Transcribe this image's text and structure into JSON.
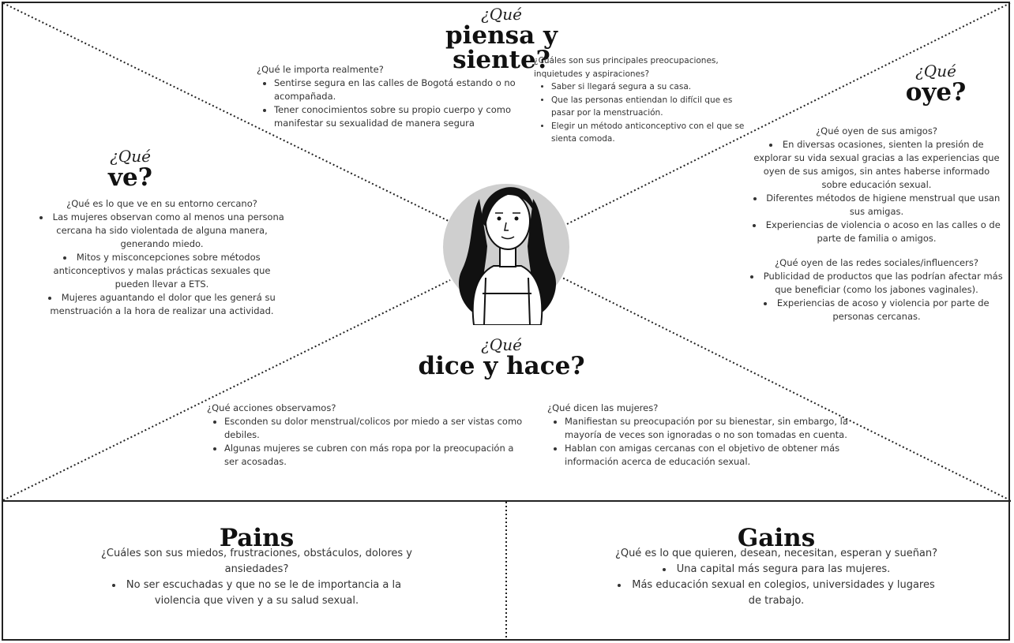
{
  "think_feel": {
    "prefix": "¿Qué",
    "title": "piensa y siente?",
    "left_question": "¿Qué le importa realmente?",
    "left_items": [
      "Sentirse segura en las calles de Bogotá estando o no acompañada.",
      "Tener conocimientos sobre su propio cuerpo y como manifestar su sexualidad de manera segura"
    ],
    "right_question": "¿Cuáles son sus principales preocupaciones, inquietudes y aspiraciones?",
    "right_items": [
      "Saber si llegará segura a su casa.",
      "Que las personas entiendan lo difícil que es pasar por la menstruación.",
      "Elegir un método anticonceptivo con el que se sienta comoda."
    ]
  },
  "hear": {
    "prefix": "¿Qué",
    "title": "oye?",
    "friends_question": "¿Qué oyen de sus amigos?",
    "friends_items": [
      "En diversas ocasiones, sienten la presión de explorar su vida sexual gracias a las experiencias que oyen de sus amigos, sin antes haberse informado sobre educación sexual.",
      "Diferentes métodos de higiene menstrual que usan sus amigas.",
      "Experiencias de violencia o acoso en las calles o de parte de familia o amigos."
    ],
    "social_question": "¿Qué oyen de las redes sociales/influencers?",
    "social_items": [
      "Publicidad de productos que las podrían afectar más que beneficiar (como los jabones vaginales).",
      "Experiencias de acoso y violencia por parte de personas cercanas."
    ]
  },
  "see": {
    "prefix": "¿Qué",
    "title": "ve?",
    "question": "¿Qué es lo que ve en su entorno cercano?",
    "items": [
      "Las mujeres observan como al menos una persona cercana ha sido violentada de alguna manera, generando miedo.",
      "Mitos y misconcepciones sobre métodos anticonceptivos y malas prácticas sexuales que pueden llevar a ETS.",
      "Mujeres aguantando el dolor que les generá su menstruación a la hora de realizar una actividad."
    ]
  },
  "say_do": {
    "prefix": "¿Qué",
    "title": "dice y hace?",
    "left_question": "¿Qué acciones observamos?",
    "left_items": [
      "Esconden su dolor menstrual/colicos por miedo a ser vistas como debiles.",
      "Algunas mujeres se cubren con más ropa por la preocupación a ser acosadas."
    ],
    "right_question": "¿Qué dicen las mujeres?",
    "right_items": [
      "Manifiestan su preocupación por su bienestar, sin embargo, la mayoría de veces son ignoradas o no son tomadas en cuenta.",
      "Hablan con amigas cercanas con el objetivo de obtener más información acerca de educación sexual."
    ]
  },
  "pains": {
    "title": "Pains",
    "question": "¿Cuáles son sus miedos, frustraciones, obstáculos, dolores y ansiedades?",
    "items": [
      "No ser escuchadas y que no se le de importancia a la violencia que viven y a su salud sexual."
    ]
  },
  "gains": {
    "title": "Gains",
    "question": "¿Qué es lo que quieren, desean, necesitan, esperan y sueñan?",
    "items": [
      "Una capital más segura para las mujeres.",
      "Más educación sexual en colegios, universidades y lugares de trabajo."
    ]
  },
  "colors": {
    "line": "#222222",
    "avatar_circle": "#cfcfcf",
    "text": "#333333"
  },
  "icons": {
    "persona": "woman-avatar-icon"
  }
}
